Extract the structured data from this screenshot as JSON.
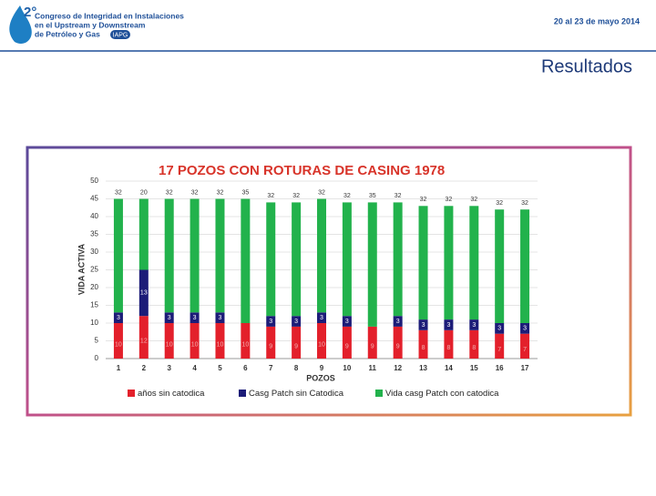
{
  "header": {
    "edition": "2°",
    "congress_line1": "Congreso de Integridad en Instalaciones",
    "congress_line2": "en el Upstream y Downstream",
    "congress_line3": "de Petróleo y Gas",
    "org": "IAPG",
    "dates": "20 al 23 de mayo 2014"
  },
  "heading": "Resultados",
  "chart_data": {
    "type": "stacked-bar",
    "title": "17 POZOS  CON ROTURAS DE CASING    1978",
    "x_label": "POZOS",
    "y_label": "VIDA ACTIVA",
    "categories": [
      "1",
      "2",
      "3",
      "4",
      "5",
      "6",
      "7",
      "8",
      "9",
      "10",
      "11",
      "12",
      "13",
      "14",
      "15",
      "16",
      "17"
    ],
    "series": [
      {
        "name": "años sin catodica",
        "color": "#e3202b",
        "values": [
          10,
          12,
          10,
          10,
          10,
          10,
          9,
          9,
          10,
          9,
          9,
          9,
          8,
          8,
          8,
          7,
          7
        ]
      },
      {
        "name": "Casg Patch sin  Catodica",
        "color": "#1c1c78",
        "values": [
          3,
          13,
          3,
          3,
          3,
          0,
          3,
          3,
          3,
          3,
          0,
          3,
          3,
          3,
          3,
          3,
          3
        ]
      },
      {
        "name": "Vida casg Patch con catodica",
        "color": "#22b24c",
        "values": [
          32,
          20,
          32,
          32,
          32,
          35,
          32,
          32,
          32,
          32,
          35,
          32,
          32,
          32,
          32,
          32,
          32
        ]
      }
    ],
    "ylim": [
      0,
      50
    ],
    "yticks": [
      0,
      5,
      10,
      15,
      20,
      25,
      30,
      35,
      40,
      45,
      50
    ],
    "grid": true,
    "legend": "bottom"
  }
}
